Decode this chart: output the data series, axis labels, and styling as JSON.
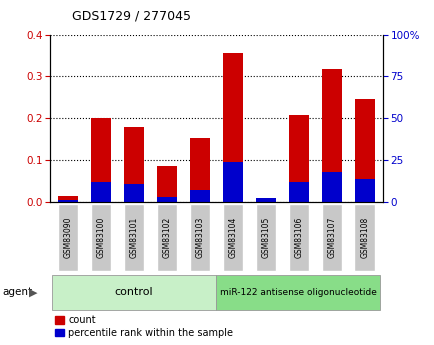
{
  "title": "GDS1729 / 277045",
  "categories": [
    "GSM83090",
    "GSM83100",
    "GSM83101",
    "GSM83102",
    "GSM83103",
    "GSM83104",
    "GSM83105",
    "GSM83106",
    "GSM83107",
    "GSM83108"
  ],
  "count_values": [
    0.015,
    0.2,
    0.178,
    0.085,
    0.152,
    0.355,
    0.01,
    0.208,
    0.318,
    0.245
  ],
  "percentile_values": [
    0.005,
    0.047,
    0.042,
    0.012,
    0.028,
    0.095,
    0.008,
    0.048,
    0.072,
    0.055
  ],
  "ylim_left": [
    0,
    0.4
  ],
  "ylim_right": [
    0,
    100
  ],
  "yticks_left": [
    0.0,
    0.1,
    0.2,
    0.3,
    0.4
  ],
  "yticks_right": [
    0,
    25,
    50,
    75,
    100
  ],
  "ytick_labels_right": [
    "0",
    "25",
    "50",
    "75",
    "100%"
  ],
  "count_color": "#cc0000",
  "percentile_color": "#0000cc",
  "bar_bg_color": "#c8c8c8",
  "grid_color": "#000000",
  "control_label": "control",
  "treatment_label": "miR-122 antisense oligonucleotide",
  "agent_label": "agent",
  "legend_count": "count",
  "legend_percentile": "percentile rank within the sample",
  "control_bg": "#c8f0c8",
  "treatment_bg": "#88dd88",
  "bar_width": 0.6
}
